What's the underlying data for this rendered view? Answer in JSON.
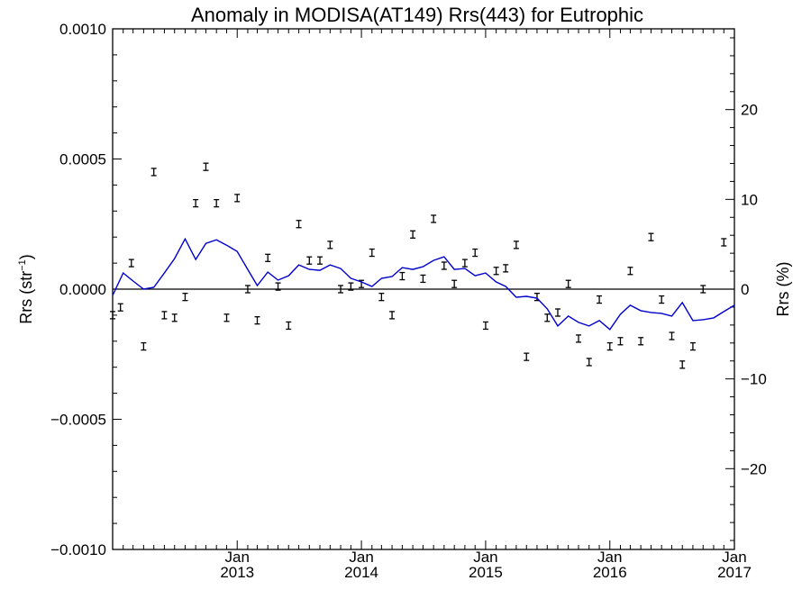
{
  "chart_data": {
    "type": "line",
    "title": "Anomaly in MODISA(AT149) Rrs(443) for Eutrophic",
    "ylabel_left": "Rrs (str",
    "ylabel_left_sup": "−1",
    "ylabel_left_close": ")",
    "ylabel_right": "Rrs (%)",
    "xlim": [
      "2012-01-01",
      "2017-01-01"
    ],
    "ylim_left": [
      -0.001,
      0.001
    ],
    "ylim_right": [
      -29,
      29
    ],
    "grid": false,
    "legend": "none",
    "colors": {
      "line": "#0000cc",
      "points": "#000000",
      "axes": "#000000"
    },
    "x_ticks": [
      {
        "date": "2013-01-01",
        "month": "Jan",
        "year": "2013"
      },
      {
        "date": "2014-01-01",
        "month": "Jan",
        "year": "2014"
      },
      {
        "date": "2015-01-01",
        "month": "Jan",
        "year": "2015"
      },
      {
        "date": "2016-01-01",
        "month": "Jan",
        "year": "2016"
      },
      {
        "date": "2017-01-01",
        "month": "Jan",
        "year": "2017"
      }
    ],
    "y_ticks_left": [
      {
        "value": 0.001,
        "label": "0.0010"
      },
      {
        "value": 0.0005,
        "label": "0.0005"
      },
      {
        "value": 0.0,
        "label": "0.0000"
      },
      {
        "value": -0.0005,
        "label": "−0.0005"
      },
      {
        "value": -0.001,
        "label": "−0.0010"
      }
    ],
    "y_ticks_right": [
      {
        "value": 20,
        "label": "20"
      },
      {
        "value": 10,
        "label": "10"
      },
      {
        "value": 0,
        "label": "0"
      },
      {
        "value": -10,
        "label": "−10"
      },
      {
        "value": -20,
        "label": "−20"
      }
    ],
    "series": [
      {
        "kind": "points_with_errorbars",
        "axis": "left",
        "points": [
          {
            "x": "2012-01-01",
            "y": -0.0001
          },
          {
            "x": "2012-01-24",
            "y": -7e-05
          },
          {
            "x": "2012-02-25",
            "y": 0.0001
          },
          {
            "x": "2012-04-01",
            "y": -0.00022
          },
          {
            "x": "2012-05-01",
            "y": 0.00045
          },
          {
            "x": "2012-06-01",
            "y": -0.0001
          },
          {
            "x": "2012-07-01",
            "y": -0.00011
          },
          {
            "x": "2012-08-01",
            "y": -3e-05
          },
          {
            "x": "2012-09-01",
            "y": 0.00033
          },
          {
            "x": "2012-10-01",
            "y": 0.00047
          },
          {
            "x": "2012-11-01",
            "y": 0.00033
          },
          {
            "x": "2012-12-01",
            "y": -0.00011
          },
          {
            "x": "2013-01-01",
            "y": 0.00035
          },
          {
            "x": "2013-02-01",
            "y": 0.0
          },
          {
            "x": "2013-03-01",
            "y": -0.00012
          },
          {
            "x": "2013-04-01",
            "y": 0.00012
          },
          {
            "x": "2013-05-01",
            "y": 1e-05
          },
          {
            "x": "2013-06-01",
            "y": -0.00014
          },
          {
            "x": "2013-07-01",
            "y": 0.00025
          },
          {
            "x": "2013-08-01",
            "y": 0.00011
          },
          {
            "x": "2013-09-01",
            "y": 0.00011
          },
          {
            "x": "2013-10-01",
            "y": 0.00017
          },
          {
            "x": "2013-11-01",
            "y": 0.0
          },
          {
            "x": "2013-12-01",
            "y": 1e-05
          },
          {
            "x": "2014-01-01",
            "y": 2e-05
          },
          {
            "x": "2014-02-01",
            "y": 0.00014
          },
          {
            "x": "2014-03-01",
            "y": -3e-05
          },
          {
            "x": "2014-04-01",
            "y": -0.0001
          },
          {
            "x": "2014-05-01",
            "y": 5e-05
          },
          {
            "x": "2014-06-01",
            "y": 0.00021
          },
          {
            "x": "2014-07-01",
            "y": 4e-05
          },
          {
            "x": "2014-08-01",
            "y": 0.00027
          },
          {
            "x": "2014-09-01",
            "y": 9e-05
          },
          {
            "x": "2014-10-01",
            "y": 2e-05
          },
          {
            "x": "2014-11-01",
            "y": 0.0001
          },
          {
            "x": "2014-12-01",
            "y": 0.00014
          },
          {
            "x": "2015-01-01",
            "y": -0.00014
          },
          {
            "x": "2015-02-01",
            "y": 7e-05
          },
          {
            "x": "2015-03-01",
            "y": 8e-05
          },
          {
            "x": "2015-04-01",
            "y": 0.00017
          },
          {
            "x": "2015-05-01",
            "y": -0.00026
          },
          {
            "x": "2015-06-01",
            "y": -3e-05
          },
          {
            "x": "2015-07-01",
            "y": -0.00011
          },
          {
            "x": "2015-08-01",
            "y": -9e-05
          },
          {
            "x": "2015-09-01",
            "y": 2e-05
          },
          {
            "x": "2015-10-01",
            "y": -0.00019
          },
          {
            "x": "2015-11-01",
            "y": -0.00028
          },
          {
            "x": "2015-12-01",
            "y": -4e-05
          },
          {
            "x": "2016-01-01",
            "y": -0.00022
          },
          {
            "x": "2016-02-01",
            "y": -0.0002
          },
          {
            "x": "2016-03-01",
            "y": 7e-05
          },
          {
            "x": "2016-04-01",
            "y": -0.0002
          },
          {
            "x": "2016-05-01",
            "y": 0.0002
          },
          {
            "x": "2016-06-01",
            "y": -4e-05
          },
          {
            "x": "2016-07-01",
            "y": -0.00018
          },
          {
            "x": "2016-08-01",
            "y": -0.00029
          },
          {
            "x": "2016-09-01",
            "y": -0.00022
          },
          {
            "x": "2016-10-01",
            "y": 0.0
          },
          {
            "x": "2016-12-01",
            "y": 0.00018
          }
        ]
      },
      {
        "kind": "line",
        "axis": "right",
        "values": [
          {
            "x": "2012-01-01",
            "y": -0.7
          },
          {
            "x": "2012-02-01",
            "y": 1.8
          },
          {
            "x": "2012-03-01",
            "y": 0.9
          },
          {
            "x": "2012-04-01",
            "y": 0.0
          },
          {
            "x": "2012-05-01",
            "y": 0.2
          },
          {
            "x": "2012-06-01",
            "y": 1.8
          },
          {
            "x": "2012-07-01",
            "y": 3.4
          },
          {
            "x": "2012-08-01",
            "y": 5.6
          },
          {
            "x": "2012-09-01",
            "y": 3.3
          },
          {
            "x": "2012-10-01",
            "y": 5.1
          },
          {
            "x": "2012-11-01",
            "y": 5.5
          },
          {
            "x": "2012-12-01",
            "y": 4.9
          },
          {
            "x": "2013-01-01",
            "y": 4.2
          },
          {
            "x": "2013-02-01",
            "y": 2.2
          },
          {
            "x": "2013-03-01",
            "y": 0.4
          },
          {
            "x": "2013-04-01",
            "y": 1.9
          },
          {
            "x": "2013-05-01",
            "y": 1.0
          },
          {
            "x": "2013-06-01",
            "y": 1.5
          },
          {
            "x": "2013-07-01",
            "y": 2.7
          },
          {
            "x": "2013-08-01",
            "y": 2.2
          },
          {
            "x": "2013-09-01",
            "y": 2.1
          },
          {
            "x": "2013-10-01",
            "y": 2.7
          },
          {
            "x": "2013-11-01",
            "y": 2.3
          },
          {
            "x": "2013-12-01",
            "y": 1.2
          },
          {
            "x": "2014-01-01",
            "y": 0.8
          },
          {
            "x": "2014-02-01",
            "y": 0.3
          },
          {
            "x": "2014-03-01",
            "y": 1.2
          },
          {
            "x": "2014-04-01",
            "y": 1.4
          },
          {
            "x": "2014-05-01",
            "y": 2.4
          },
          {
            "x": "2014-06-01",
            "y": 2.2
          },
          {
            "x": "2014-07-01",
            "y": 2.5
          },
          {
            "x": "2014-08-01",
            "y": 3.2
          },
          {
            "x": "2014-09-01",
            "y": 3.6
          },
          {
            "x": "2014-10-01",
            "y": 2.2
          },
          {
            "x": "2014-11-01",
            "y": 2.3
          },
          {
            "x": "2014-12-01",
            "y": 1.5
          },
          {
            "x": "2015-01-01",
            "y": 1.8
          },
          {
            "x": "2015-02-01",
            "y": 0.8
          },
          {
            "x": "2015-03-01",
            "y": 0.3
          },
          {
            "x": "2015-04-01",
            "y": -0.9
          },
          {
            "x": "2015-05-01",
            "y": -0.8
          },
          {
            "x": "2015-06-01",
            "y": -1.0
          },
          {
            "x": "2015-07-01",
            "y": -2.2
          },
          {
            "x": "2015-08-01",
            "y": -4.1
          },
          {
            "x": "2015-09-01",
            "y": -3.0
          },
          {
            "x": "2015-10-01",
            "y": -3.7
          },
          {
            "x": "2015-11-01",
            "y": -4.1
          },
          {
            "x": "2015-12-01",
            "y": -3.5
          },
          {
            "x": "2016-01-01",
            "y": -4.5
          },
          {
            "x": "2016-02-01",
            "y": -2.8
          },
          {
            "x": "2016-03-01",
            "y": -1.8
          },
          {
            "x": "2016-04-01",
            "y": -2.4
          },
          {
            "x": "2016-05-01",
            "y": -2.6
          },
          {
            "x": "2016-06-01",
            "y": -2.7
          },
          {
            "x": "2016-07-01",
            "y": -3.0
          },
          {
            "x": "2016-08-01",
            "y": -1.5
          },
          {
            "x": "2016-09-01",
            "y": -3.5
          },
          {
            "x": "2016-10-01",
            "y": -3.4
          },
          {
            "x": "2016-11-01",
            "y": -3.2
          },
          {
            "x": "2016-12-01",
            "y": -2.5
          },
          {
            "x": "2017-01-01",
            "y": -1.8
          }
        ]
      }
    ]
  }
}
